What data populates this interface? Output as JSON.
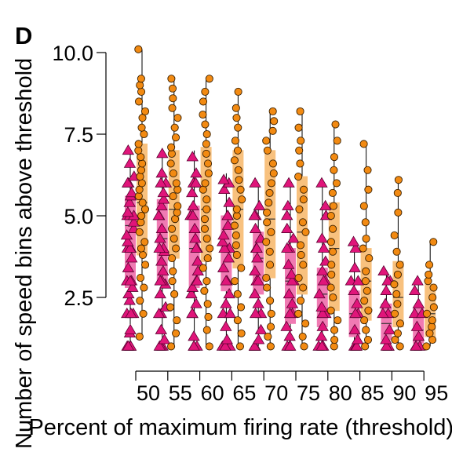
{
  "panel_label": "D",
  "chart_data": {
    "type": "box",
    "title": "",
    "xlabel": "Percent of maximum firing rate (threshold)",
    "ylabel": "Number of speed bins above threshold",
    "ylim": [
      0.5,
      10.5
    ],
    "yticks": [
      2.5,
      5.0,
      7.5,
      10.0
    ],
    "ytick_labels": [
      "2.5",
      "5.0",
      "7.5",
      "10.0"
    ],
    "categories": [
      "50",
      "55",
      "60",
      "65",
      "70",
      "75",
      "80",
      "85",
      "90",
      "95"
    ],
    "grid": false,
    "legend": "none",
    "series": [
      {
        "marker": "triangle",
        "color": "#e0157a",
        "box_fill": "#f07ab3",
        "whisker_low": [
          1,
          1,
          1,
          1,
          1,
          1,
          1,
          1,
          1,
          1
        ],
        "q1": [
          2.8,
          2.9,
          2.8,
          2.7,
          2.6,
          1.7,
          1.6,
          1.3,
          1.2,
          1.1
        ],
        "median": [
          4.7,
          4.3,
          4.0,
          3.9,
          3.7,
          3.0,
          2.6,
          2.0,
          1.7,
          1.5
        ],
        "q3": [
          5.6,
          5.5,
          5.3,
          5.0,
          4.5,
          4.0,
          3.4,
          2.7,
          2.3,
          2.2
        ],
        "whisker_high": [
          7,
          7,
          7,
          6.3,
          6,
          6,
          6,
          4.2,
          3.3,
          3
        ],
        "points": [
          [
            1,
            1,
            1,
            1,
            1.4,
            1.5,
            2,
            2,
            2,
            2.4,
            2.6,
            2.8,
            3,
            3,
            3,
            3.4,
            3.7,
            4,
            4,
            4,
            4.2,
            4.4,
            4.6,
            4.8,
            5,
            5,
            5,
            5.1,
            5.4,
            5.6,
            5.7,
            6,
            6,
            6.2,
            6.6,
            7
          ],
          [
            1,
            1,
            1,
            1.2,
            1.5,
            2,
            2,
            2.2,
            2.6,
            2.9,
            3,
            3,
            3.3,
            3.6,
            3.9,
            4,
            4,
            4.3,
            4.6,
            5,
            5,
            5.3,
            5.5,
            5.7,
            6,
            6,
            6.3,
            6.9
          ],
          [
            1,
            1,
            1,
            1.3,
            2,
            2,
            2.3,
            2.6,
            2.8,
            3,
            3,
            3.3,
            3.6,
            4,
            4,
            4.3,
            4.6,
            5,
            5,
            5.3,
            5.7,
            6,
            6,
            6.3,
            6.8
          ],
          [
            1,
            1,
            1,
            1.2,
            1.6,
            2,
            2,
            2.3,
            2.6,
            3,
            3,
            3.4,
            3.7,
            4,
            4,
            4.2,
            4.4,
            4.7,
            5,
            5,
            5.4,
            5.8,
            6,
            6.1
          ],
          [
            1,
            1,
            1,
            1.2,
            1.5,
            2,
            2,
            2.3,
            2.6,
            3,
            3,
            3.3,
            3.7,
            4,
            4,
            4.3,
            4.6,
            5,
            5,
            5.3,
            6
          ],
          [
            1,
            1,
            1,
            1.3,
            1.6,
            2,
            2,
            2.3,
            2.6,
            3,
            3,
            3.2,
            3.5,
            4,
            4,
            4.3,
            4.6,
            5,
            5.3,
            6
          ],
          [
            1,
            1,
            1,
            1.3,
            1.6,
            2,
            2,
            2.2,
            2.6,
            3,
            3,
            3.3,
            3.6,
            4,
            4.3,
            5,
            5.3,
            6
          ],
          [
            1,
            1,
            1,
            1.2,
            1.5,
            2,
            2,
            2.3,
            2.7,
            3,
            3,
            3.4,
            4,
            4.2
          ],
          [
            1,
            1,
            1,
            1.2,
            1.5,
            2,
            2,
            2.3,
            2.7,
            3,
            3,
            3.3
          ],
          [
            1,
            1,
            1,
            1.3,
            1.6,
            2,
            2,
            2.3,
            2.7,
            3
          ]
        ]
      },
      {
        "marker": "circle",
        "color": "#f28a12",
        "box_fill": "#f8c17e",
        "whisker_low": [
          1.3,
          1,
          1,
          1,
          1,
          1,
          1,
          1,
          1,
          1
        ],
        "q1": [
          3.8,
          3.7,
          3.6,
          3.4,
          3.1,
          2.6,
          2.1,
          1.8,
          1.6,
          1.3
        ],
        "median": [
          5.4,
          5.2,
          5.2,
          5.2,
          4.9,
          4.5,
          4.0,
          3.0,
          2.5,
          2.0
        ],
        "q3": [
          7.2,
          7.0,
          7.1,
          7.0,
          7.0,
          6.2,
          5.4,
          4.0,
          3.6,
          2.9
        ],
        "whisker_high": [
          10.1,
          9.2,
          9.2,
          8.8,
          8.2,
          8.2,
          7.8,
          7.2,
          6.1,
          4.2
        ],
        "points": [
          [
            1.3,
            2,
            2.4,
            2.8,
            3.1,
            3.5,
            3.8,
            4,
            4.2,
            4.5,
            4.8,
            5,
            5.2,
            5.4,
            5.6,
            5.8,
            6,
            6.2,
            6.4,
            6.6,
            6.8,
            7,
            7.2,
            7.5,
            7.7,
            8,
            8.2,
            8.5,
            8.8,
            9,
            9.2,
            10.1
          ],
          [
            1,
            1.4,
            1.8,
            2.2,
            2.6,
            3,
            3.3,
            3.7,
            4,
            4.3,
            4.6,
            4.9,
            5.1,
            5.3,
            5.6,
            5.8,
            6,
            6.3,
            6.6,
            6.9,
            7.1,
            7.4,
            7.7,
            8,
            8.3,
            8.6,
            8.9,
            9.2
          ],
          [
            1,
            1.5,
            1.9,
            2.3,
            2.7,
            3,
            3.4,
            3.7,
            4,
            4.3,
            4.6,
            4.9,
            5.2,
            5.5,
            5.8,
            6,
            6.3,
            6.6,
            6.9,
            7.2,
            7.5,
            7.8,
            8.1,
            8.5,
            8.8,
            9.2
          ],
          [
            1,
            1.4,
            1.8,
            2.2,
            2.6,
            3,
            3.4,
            3.8,
            4.1,
            4.4,
            4.7,
            5,
            5.2,
            5.5,
            5.8,
            6.1,
            6.4,
            6.7,
            7,
            7.3,
            7.7,
            8,
            8.3,
            8.8
          ],
          [
            1,
            1.3,
            1.6,
            2,
            2.4,
            2.8,
            3.1,
            3.5,
            3.9,
            4.2,
            4.5,
            4.8,
            5.1,
            5.4,
            5.7,
            6,
            6.3,
            6.6,
            7,
            7.3,
            7.6,
            7.9,
            8.2
          ],
          [
            1,
            1.3,
            1.7,
            2,
            2.4,
            2.8,
            3.1,
            3.5,
            3.8,
            4.1,
            4.5,
            4.8,
            5.2,
            5.5,
            5.8,
            6.2,
            6.6,
            7,
            7.3,
            7.7,
            8.2
          ],
          [
            1,
            1.2,
            1.5,
            1.8,
            2.1,
            2.5,
            2.8,
            3.2,
            3.5,
            3.9,
            4.2,
            4.6,
            5,
            5.3,
            5.7,
            6,
            6.4,
            6.8,
            7.3,
            7.8
          ],
          [
            1,
            1.2,
            1.5,
            1.8,
            2.1,
            2.4,
            2.7,
            3,
            3.3,
            3.7,
            4,
            4.3,
            4.8,
            5.3,
            5.8,
            6.4,
            7.2
          ],
          [
            1,
            1.2,
            1.4,
            1.7,
            2,
            2.3,
            2.6,
            2.9,
            3.2,
            3.5,
            3.9,
            4.4,
            5.1,
            5.7,
            6.1
          ],
          [
            1,
            1.2,
            1.4,
            1.6,
            1.8,
            2,
            2.2,
            2.5,
            2.8,
            3,
            3.2,
            3.5,
            4.2
          ]
        ]
      }
    ]
  }
}
